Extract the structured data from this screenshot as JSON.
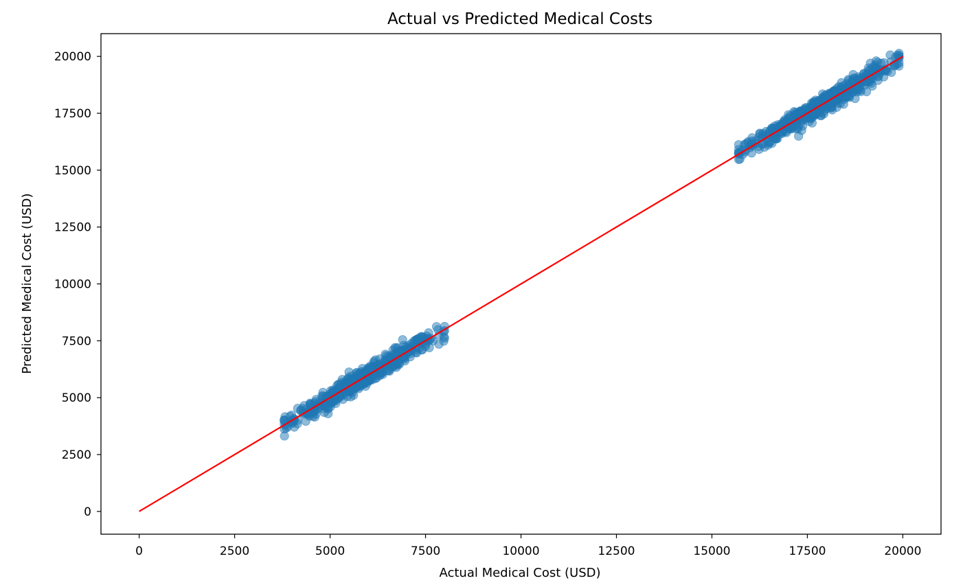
{
  "chart_data": {
    "type": "scatter",
    "title": "Actual vs Predicted Medical Costs",
    "xlabel": "Actual Medical Cost (USD)",
    "ylabel": "Predicted Medical Cost (USD)",
    "xlim": [
      -1000,
      21000
    ],
    "ylim": [
      -1000,
      21000
    ],
    "xticks": [
      0,
      2500,
      5000,
      7500,
      10000,
      12500,
      15000,
      17500,
      20000
    ],
    "yticks": [
      0,
      2500,
      5000,
      7500,
      10000,
      12500,
      15000,
      17500,
      20000
    ],
    "grid": false,
    "colors": {
      "points": "#1f77b4",
      "reference_line": "#ff0000",
      "axes": "#000000"
    },
    "reference_line": {
      "x": [
        0,
        20000
      ],
      "y": [
        0,
        20000
      ]
    },
    "clusters": [
      {
        "x_range": [
          3800,
          8000
        ],
        "slope": 1.0,
        "y_spread": 350,
        "count": 500
      },
      {
        "x_range": [
          15700,
          19900
        ],
        "slope": 1.0,
        "y_spread": 350,
        "count": 500
      }
    ],
    "series": [
      {
        "points": [
          [
            3820,
            4160
          ],
          [
            3950,
            4180
          ],
          [
            4050,
            4080
          ],
          [
            4150,
            4530
          ],
          [
            4230,
            4420
          ],
          [
            4320,
            4650
          ],
          [
            4400,
            4300
          ],
          [
            4480,
            4720
          ],
          [
            4550,
            4180
          ],
          [
            4620,
            4820
          ],
          [
            4700,
            4550
          ],
          [
            4780,
            4950
          ],
          [
            4850,
            4350
          ],
          [
            4930,
            5050
          ],
          [
            5000,
            4800
          ],
          [
            5080,
            5250
          ],
          [
            5150,
            4750
          ],
          [
            5230,
            5400
          ],
          [
            5300,
            5100
          ],
          [
            5380,
            5550
          ],
          [
            5450,
            5050
          ],
          [
            5530,
            5700
          ],
          [
            5600,
            5380
          ],
          [
            5680,
            5850
          ],
          [
            5750,
            5400
          ],
          [
            5830,
            6000
          ],
          [
            5900,
            5650
          ],
          [
            5980,
            6150
          ],
          [
            6050,
            5800
          ],
          [
            6130,
            6300
          ],
          [
            6200,
            5850
          ],
          [
            6280,
            6450
          ],
          [
            6350,
            6100
          ],
          [
            6430,
            6600
          ],
          [
            6500,
            6200
          ],
          [
            6580,
            6750
          ],
          [
            6650,
            6350
          ],
          [
            6730,
            6900
          ],
          [
            6800,
            6500
          ],
          [
            6880,
            7050
          ],
          [
            6950,
            6700
          ],
          [
            7030,
            7200
          ],
          [
            7100,
            6800
          ],
          [
            7180,
            7400
          ],
          [
            7250,
            7000
          ],
          [
            7330,
            7600
          ],
          [
            7400,
            7100
          ],
          [
            7500,
            7350
          ],
          [
            7580,
            7850
          ],
          [
            7700,
            7500
          ],
          [
            7850,
            7350
          ],
          [
            7980,
            7680
          ],
          [
            5250,
            5600
          ],
          [
            5700,
            6100
          ],
          [
            6300,
            6700
          ],
          [
            6700,
            7200
          ],
          [
            6900,
            7550
          ],
          [
            7400,
            7650
          ],
          [
            7600,
            7200
          ],
          [
            4600,
            4150
          ]
        ]
      },
      {
        "points": [
          [
            15700,
            16120
          ],
          [
            15850,
            16100
          ],
          [
            15950,
            16250
          ],
          [
            16050,
            16420
          ],
          [
            16150,
            16300
          ],
          [
            16250,
            16580
          ],
          [
            16330,
            16150
          ],
          [
            16420,
            16700
          ],
          [
            16500,
            16450
          ],
          [
            16580,
            16850
          ],
          [
            16650,
            16400
          ],
          [
            16730,
            17000
          ],
          [
            16800,
            16700
          ],
          [
            16880,
            17150
          ],
          [
            16950,
            16650
          ],
          [
            17030,
            17300
          ],
          [
            17100,
            16950
          ],
          [
            17180,
            17450
          ],
          [
            17250,
            16900
          ],
          [
            17330,
            17600
          ],
          [
            17400,
            17200
          ],
          [
            17480,
            17750
          ],
          [
            17550,
            17150
          ],
          [
            17630,
            17900
          ],
          [
            17700,
            17450
          ],
          [
            17780,
            18050
          ],
          [
            17850,
            17400
          ],
          [
            17930,
            18200
          ],
          [
            18000,
            17700
          ],
          [
            18080,
            18350
          ],
          [
            18150,
            17650
          ],
          [
            18230,
            18500
          ],
          [
            18300,
            17950
          ],
          [
            18380,
            18650
          ],
          [
            18450,
            17900
          ],
          [
            18530,
            18800
          ],
          [
            18600,
            18200
          ],
          [
            18680,
            18950
          ],
          [
            18750,
            18150
          ],
          [
            18830,
            19100
          ],
          [
            18900,
            18450
          ],
          [
            18980,
            19250
          ],
          [
            19050,
            18450
          ],
          [
            19130,
            19400
          ],
          [
            19200,
            18700
          ],
          [
            19280,
            19550
          ],
          [
            19350,
            18950
          ],
          [
            19430,
            19700
          ],
          [
            19500,
            19100
          ],
          [
            19600,
            19350
          ],
          [
            19700,
            19300
          ],
          [
            19850,
            19650
          ],
          [
            19300,
            19800
          ],
          [
            19150,
            19700
          ],
          [
            16050,
            16150
          ],
          [
            17350,
            16750
          ],
          [
            17900,
            18350
          ],
          [
            18700,
            19200
          ],
          [
            16500,
            16600
          ],
          [
            19550,
            19400
          ]
        ]
      }
    ]
  }
}
